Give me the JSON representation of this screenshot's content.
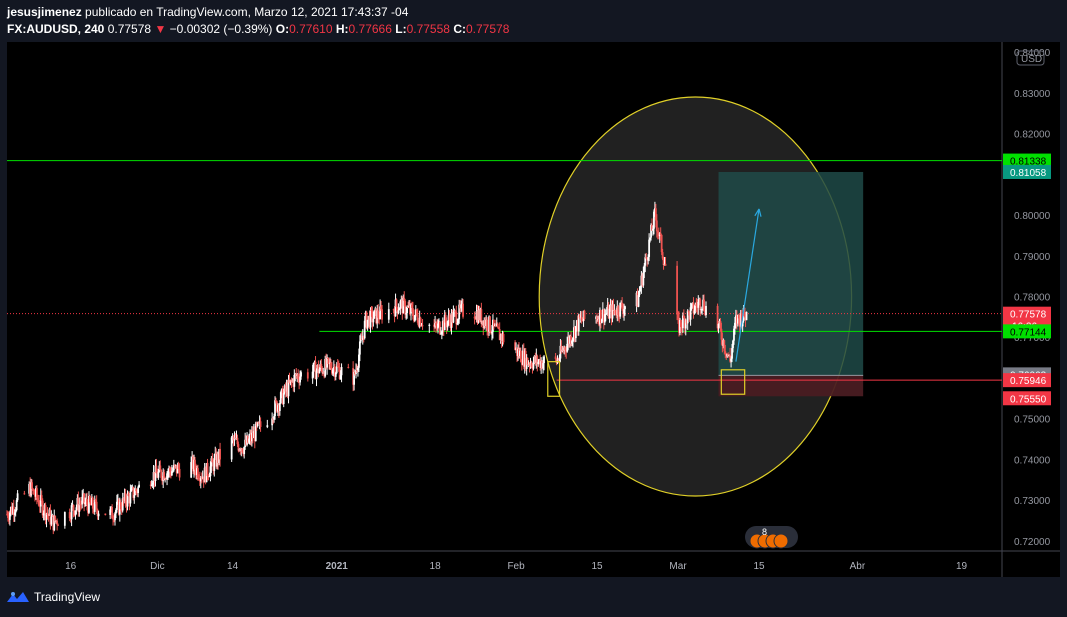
{
  "header": {
    "author": "jesusjimenez",
    "published_text": "publicado en TradingView.com, Marzo 12, 2021 17:43:37 -04",
    "symbol": "FX:AUDUSD, 240",
    "last": "0.77578",
    "change_arrow": "▼",
    "change": "−0.00302 (−0.39%)",
    "o_label": "O:",
    "o_value": "0.77610",
    "h_label": "H:",
    "h_value": "0.77666",
    "l_label": "L:",
    "l_value": "0.77558",
    "c_label": "C:",
    "c_value": "0.77578"
  },
  "footer": {
    "brand": "TradingView",
    "logo_icon": "tradingview-logo-icon"
  },
  "colors": {
    "background": "#000000",
    "frame": "#131722",
    "up": "#ffffff",
    "down": "#ef5350",
    "green_line": "#00e000",
    "red_line": "#f23645",
    "circle": "#e0d028",
    "target_zone": "#1f4a48",
    "stop_zone": "#4a1c22",
    "arrow": "#2aa8e0"
  },
  "chart_data": {
    "type": "candlestick",
    "symbol": "FX:AUDUSD",
    "timeframe": "240",
    "currency": "USD",
    "x_ticks": [
      "16",
      "Dic",
      "14",
      "2021",
      "18",
      "Feb",
      "15",
      "Mar",
      "15",
      "Abr",
      "19"
    ],
    "y_ticks": [
      "0.84000",
      "0.83000",
      "0.82000",
      "0.81000",
      "0.80000",
      "0.79000",
      "0.78000",
      "0.77000",
      "0.76000",
      "0.75000",
      "0.74000",
      "0.73000",
      "0.72000"
    ],
    "ylim": [
      0.7175,
      0.8425
    ],
    "price_path": [
      {
        "date": "2020-11-05",
        "price": 0.7265
      },
      {
        "date": "2020-11-09",
        "price": 0.733
      },
      {
        "date": "2020-11-13",
        "price": 0.7245
      },
      {
        "date": "2020-11-18",
        "price": 0.7295
      },
      {
        "date": "2020-11-23",
        "price": 0.7265
      },
      {
        "date": "2020-11-30",
        "price": 0.736
      },
      {
        "date": "2020-12-07",
        "price": 0.7385
      },
      {
        "date": "2020-12-09",
        "price": 0.736
      },
      {
        "date": "2020-12-14",
        "price": 0.7445
      },
      {
        "date": "2020-12-16",
        "price": 0.743
      },
      {
        "date": "2020-12-21",
        "price": 0.752
      },
      {
        "date": "2020-12-25",
        "price": 0.7605
      },
      {
        "date": "2020-12-31",
        "price": 0.763
      },
      {
        "date": "2021-01-04",
        "price": 0.76
      },
      {
        "date": "2021-01-06",
        "price": 0.774
      },
      {
        "date": "2021-01-12",
        "price": 0.778
      },
      {
        "date": "2021-01-18",
        "price": 0.772
      },
      {
        "date": "2021-01-24",
        "price": 0.7775
      },
      {
        "date": "2021-02-03",
        "price": 0.764
      },
      {
        "date": "2021-02-08",
        "price": 0.764
      },
      {
        "date": "2021-02-12",
        "price": 0.774
      },
      {
        "date": "2021-02-17",
        "price": 0.776
      },
      {
        "date": "2021-02-22",
        "price": 0.779
      },
      {
        "date": "2021-02-25",
        "price": 0.8
      },
      {
        "date": "2021-03-01",
        "price": 0.7725
      },
      {
        "date": "2021-03-05",
        "price": 0.779
      },
      {
        "date": "2021-03-08",
        "price": 0.7725
      },
      {
        "date": "2021-03-10",
        "price": 0.764
      },
      {
        "date": "2021-03-11",
        "price": 0.774
      },
      {
        "date": "2021-03-13",
        "price": 0.7758
      }
    ],
    "last_price": 0.77578,
    "horizontal_lines": [
      {
        "price": 0.81338,
        "color": "#00e000"
      },
      {
        "price": 0.77144,
        "color": "#00e000"
      },
      {
        "price": 0.75946,
        "color": "#f23645"
      },
      {
        "price": 0.77578,
        "color": "#f23645",
        "style": "dotted"
      }
    ],
    "price_labels": [
      {
        "text": "0.81338",
        "price": 0.81338,
        "bg": "#00e000",
        "fg": "#000000"
      },
      {
        "text": "0.81058",
        "price": 0.81058,
        "bg": "#089981",
        "fg": "#ffffff"
      },
      {
        "text": "0.77578",
        "price": 0.77578,
        "bg": "#f23645",
        "fg": "#ffffff",
        "extra": "16:26"
      },
      {
        "text": "0.77144",
        "price": 0.77144,
        "bg": "#00e000",
        "fg": "#000000"
      },
      {
        "text": "0.76063",
        "price": 0.76063,
        "bg": "#787b86",
        "fg": "#ffffff"
      },
      {
        "text": "0.75946",
        "price": 0.75946,
        "bg": "#f23645",
        "fg": "#ffffff"
      },
      {
        "text": "0.75550",
        "price": 0.7555,
        "bg": "#f23645",
        "fg": "#ffffff"
      }
    ],
    "position": {
      "entry": 0.76063,
      "target": 0.81058,
      "stop": 0.7555,
      "start": "2021-03-08",
      "end": "2021-04-02"
    },
    "arrow": {
      "from_date": "2021-03-11",
      "from_price": 0.764,
      "to_date": "2021-03-15",
      "to_price": 0.8015
    },
    "highlight_boxes": [
      {
        "date1": "2021-02-07",
        "date2": "2021-02-08",
        "p1": 0.764,
        "p2": 0.7555
      },
      {
        "date1": "2021-03-09",
        "date2": "2021-03-12",
        "p1": 0.762,
        "p2": 0.756
      }
    ],
    "circle": {
      "center_date": "2021-03-04",
      "center_price": 0.78,
      "rx_days": 27,
      "ry_price": 0.049
    },
    "x_tick_dates": [
      "2020-11-16",
      "2020-12-01",
      "2020-12-14",
      "2021-01-01",
      "2021-01-18",
      "2021-02-01",
      "2021-02-15",
      "2021-03-01",
      "2021-03-15",
      "2021-04-01",
      "2021-04-19"
    ],
    "events_badge": "8"
  }
}
